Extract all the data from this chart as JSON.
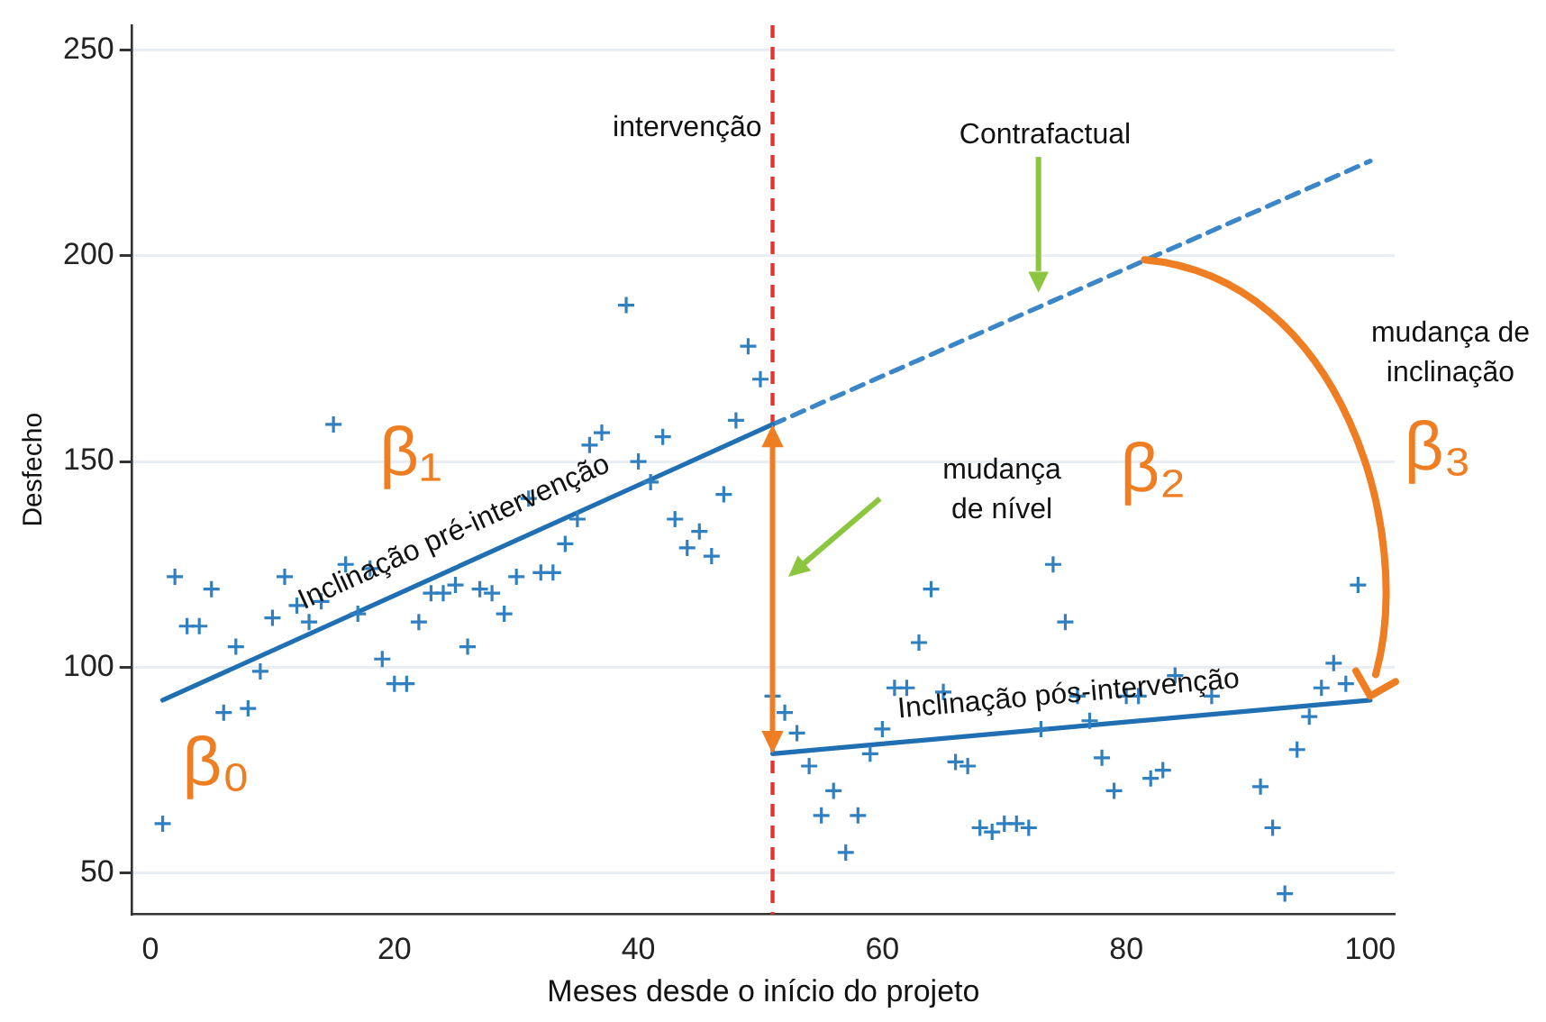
{
  "chart_data": {
    "type": "scatter",
    "xlabel": "Meses desde o início do projeto",
    "ylabel": "Desfecho",
    "xlim": [
      -1.5,
      102
    ],
    "ylim": [
      40,
      256
    ],
    "xticks": [
      0,
      20,
      40,
      60,
      80,
      100
    ],
    "yticks": [
      50,
      100,
      150,
      200,
      250
    ],
    "grid": "y",
    "legend": false,
    "series": [
      {
        "marker": "cross",
        "color": "#2f7fc1",
        "x": [
          1,
          2,
          3,
          4,
          5,
          6,
          7,
          8,
          9,
          10,
          11,
          12,
          13,
          14,
          15,
          16,
          17,
          18,
          19,
          20,
          21,
          22,
          23,
          24,
          25,
          26,
          27,
          28,
          29,
          30,
          31,
          32,
          33,
          34,
          35,
          36,
          37,
          39,
          40,
          41,
          42,
          43,
          44,
          45,
          46,
          47,
          48,
          49,
          50,
          51,
          52,
          53,
          54,
          55,
          56,
          57,
          58,
          59,
          60,
          61,
          62,
          63,
          64,
          65,
          66,
          67,
          68,
          69,
          70,
          71,
          72,
          73,
          74,
          75,
          76,
          77,
          78,
          79,
          80,
          81,
          82,
          83,
          84,
          87,
          91,
          92,
          93,
          94,
          95,
          96,
          97,
          98,
          99
        ],
        "values": [
          62,
          122,
          110,
          110,
          119,
          89,
          105,
          90,
          99,
          112,
          122,
          115,
          111,
          116,
          159,
          125,
          113,
          124,
          102,
          96,
          96,
          111,
          118,
          118,
          120,
          105,
          119,
          118,
          113,
          122,
          141,
          123,
          123,
          130,
          136,
          154,
          157,
          188,
          150,
          145,
          156,
          136,
          129,
          133,
          127,
          142,
          160,
          178,
          170,
          93,
          89,
          84,
          76,
          64,
          70,
          55,
          64,
          79,
          85,
          95,
          95,
          106,
          119,
          94,
          77,
          76,
          61,
          60,
          62,
          62,
          61,
          85,
          125,
          111,
          93,
          87,
          78,
          70,
          93,
          93,
          73,
          75,
          98,
          93,
          71,
          61,
          45,
          80,
          88,
          95,
          101,
          96,
          120
        ]
      },
      {
        "type": "line",
        "marker": "none",
        "name": "Inclinação pré-intervenção",
        "color": "#1f6fb2",
        "x": [
          1,
          51
        ],
        "values": [
          92,
          159
        ]
      },
      {
        "type": "line",
        "marker": "none",
        "name": "Inclinação pós-intervenção",
        "color": "#1f6fb2",
        "x": [
          51,
          100
        ],
        "values": [
          79,
          92
        ]
      },
      {
        "type": "line",
        "marker": "none",
        "color": "#3a86c8",
        "line_style": "dashed",
        "x": [
          51,
          100
        ],
        "values": [
          159,
          223
        ]
      }
    ],
    "ref_lines": [
      {
        "axis": "x",
        "value": 51,
        "label": "intervenção",
        "color": "#e8332f",
        "line_style": "dashed"
      }
    ],
    "annotations": [
      "Contrafactual",
      "mudança\nde nível",
      "β₀",
      "β₁",
      "β₂",
      "mudança de\ninclinação",
      "β₃"
    ]
  }
}
